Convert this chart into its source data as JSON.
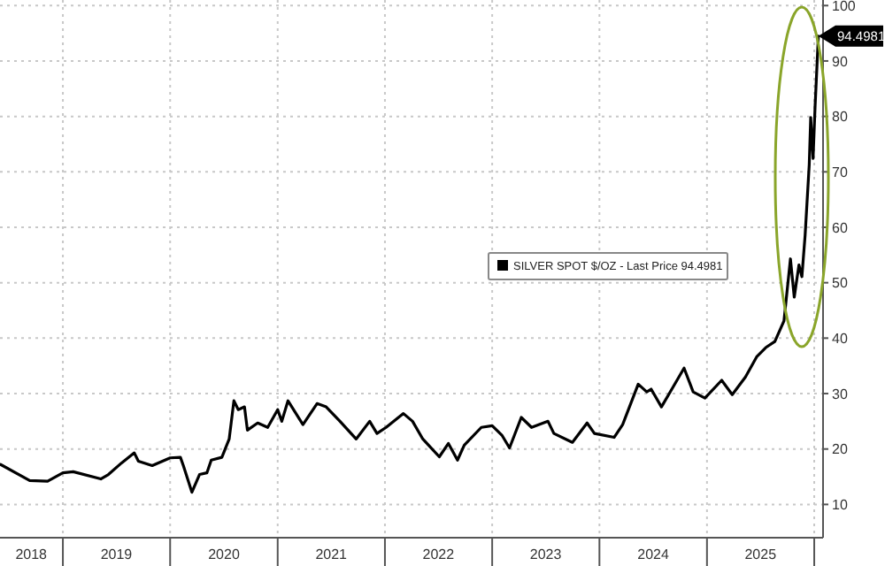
{
  "chart_data": {
    "type": "line",
    "legend": "right",
    "grid": true,
    "xlim": [
      "2018-06-01",
      "2026-01-31"
    ],
    "ylim": [
      4,
      101
    ],
    "yticks": [
      10,
      20,
      30,
      40,
      50,
      60,
      70,
      80,
      90,
      100
    ],
    "xticks": [
      {
        "value": "2018-09-15",
        "label": "2018"
      },
      {
        "value": "2019-01-01",
        "label": null
      },
      {
        "value": "2019-07-02",
        "label": "2019"
      },
      {
        "value": "2020-01-01",
        "label": null
      },
      {
        "value": "2020-07-02",
        "label": "2020"
      },
      {
        "value": "2021-01-01",
        "label": null
      },
      {
        "value": "2021-07-02",
        "label": "2021"
      },
      {
        "value": "2022-01-01",
        "label": null
      },
      {
        "value": "2022-07-02",
        "label": "2022"
      },
      {
        "value": "2023-01-01",
        "label": null
      },
      {
        "value": "2023-07-02",
        "label": "2023"
      },
      {
        "value": "2024-01-01",
        "label": null
      },
      {
        "value": "2024-07-02",
        "label": "2024"
      },
      {
        "value": "2025-01-01",
        "label": null
      },
      {
        "value": "2025-07-02",
        "label": "2025"
      },
      {
        "value": "2026-01-01",
        "label": null
      }
    ],
    "annotations": [
      {
        "text": "94.4981",
        "x": "2026-01-15",
        "y": 94.4981
      }
    ],
    "series": [
      {
        "name": "SILVER SPOT $/OZ - Last Price 94.4981",
        "color": "#000000",
        "x": [
          "2018-06-03",
          "2018-09-10",
          "2018-11-10",
          "2019-01-01",
          "2019-02-05",
          "2019-05-10",
          "2019-06-05",
          "2019-07-20",
          "2019-09-01",
          "2019-09-15",
          "2019-11-01",
          "2020-01-01",
          "2020-02-05",
          "2020-02-15",
          "2020-03-15",
          "2020-04-10",
          "2020-05-05",
          "2020-05-20",
          "2020-06-25",
          "2020-07-20",
          "2020-08-05",
          "2020-08-20",
          "2020-09-10",
          "2020-09-20",
          "2020-10-25",
          "2020-11-28",
          "2021-01-01",
          "2021-01-15",
          "2021-02-05",
          "2021-03-28",
          "2021-05-15",
          "2021-06-15",
          "2021-08-01",
          "2021-09-25",
          "2021-11-10",
          "2021-12-05",
          "2022-01-05",
          "2022-03-05",
          "2022-04-05",
          "2022-05-10",
          "2022-07-05",
          "2022-08-05",
          "2022-09-05",
          "2022-09-28",
          "2022-11-25",
          "2023-01-01",
          "2023-02-03",
          "2023-03-01",
          "2023-04-10",
          "2023-05-15",
          "2023-07-10",
          "2023-07-30",
          "2023-10-01",
          "2023-11-20",
          "2023-12-15",
          "2024-02-20",
          "2024-03-20",
          "2024-05-12",
          "2024-06-10",
          "2024-06-25",
          "2024-07-30",
          "2024-09-10",
          "2024-10-15",
          "2024-11-15",
          "2024-12-25",
          "2025-02-20",
          "2025-03-28",
          "2025-05-12",
          "2025-06-20",
          "2025-07-20",
          "2025-08-20",
          "2025-09-20",
          "2025-10-12",
          "2025-10-25",
          "2025-11-10",
          "2025-11-20",
          "2025-12-01",
          "2025-12-15",
          "2025-12-20",
          "2025-12-28",
          "2026-01-04",
          "2026-01-15"
        ],
        "values": [
          17.2,
          14.3,
          14.2,
          15.7,
          15.9,
          14.6,
          15.4,
          17.5,
          19.3,
          17.8,
          17.0,
          18.4,
          18.5,
          17.0,
          12.2,
          15.4,
          15.7,
          18.0,
          18.5,
          21.8,
          28.7,
          27.1,
          27.6,
          23.4,
          24.7,
          23.9,
          27.1,
          25.0,
          28.7,
          24.4,
          28.2,
          27.6,
          25.0,
          21.8,
          25.0,
          22.8,
          23.9,
          26.4,
          25.0,
          21.8,
          18.6,
          21.0,
          18.0,
          20.7,
          23.9,
          24.2,
          22.5,
          20.2,
          25.7,
          23.9,
          25.0,
          22.8,
          21.2,
          24.7,
          22.8,
          22.1,
          24.4,
          31.7,
          30.3,
          30.8,
          27.6,
          31.4,
          34.6,
          30.3,
          29.2,
          32.4,
          29.8,
          33.0,
          36.7,
          38.3,
          39.4,
          43.1,
          54.3,
          47.4,
          53.2,
          51.1,
          58.6,
          71.3,
          79.8,
          72.4,
          81.9,
          94.4981
        ]
      }
    ]
  }
}
